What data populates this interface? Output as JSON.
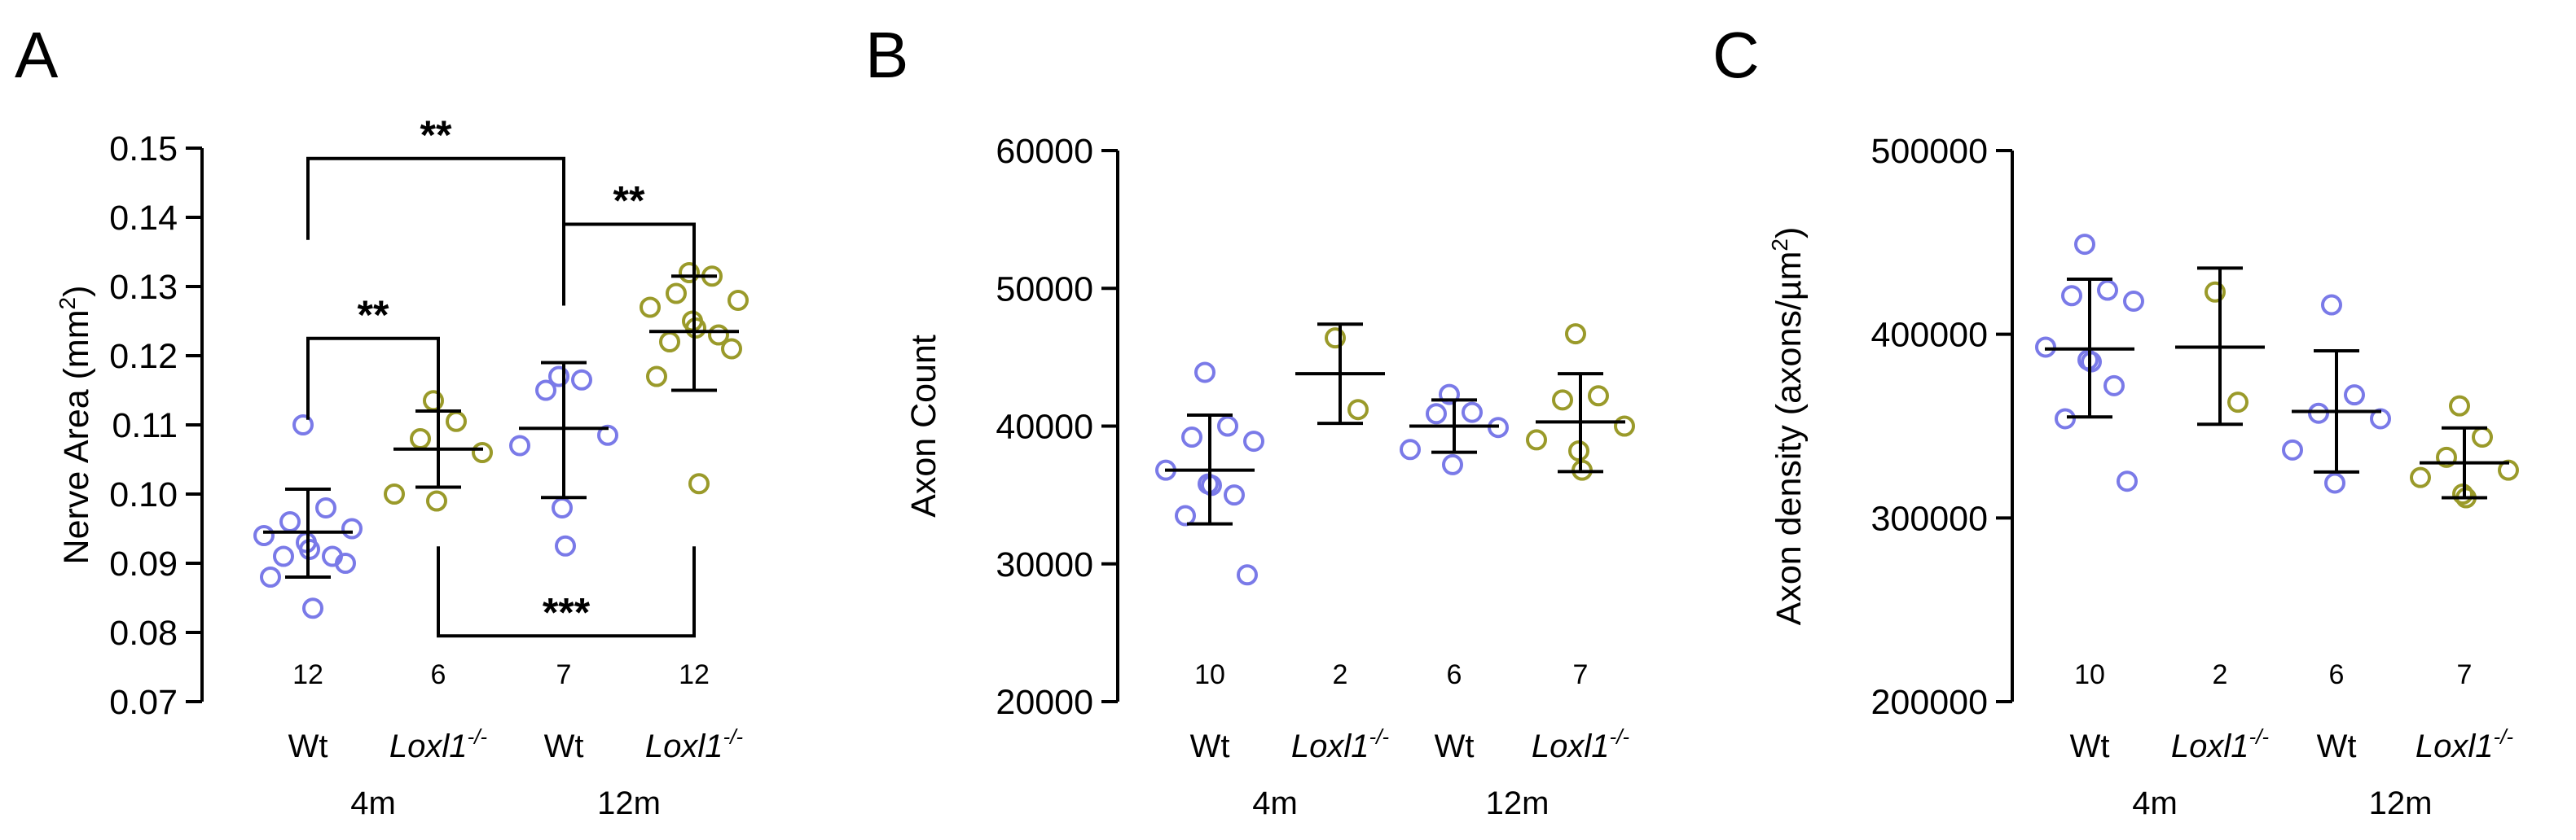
{
  "colors": {
    "wt": "#7a7ae8",
    "ko": "#9a9a2a"
  },
  "chart_data": [
    {
      "panel": "A",
      "type": "scatter",
      "ylabel": "Nerve Area (mm",
      "ylabel_sup": "2",
      "ylabel_end": ")",
      "ylim": [
        0.07,
        0.15
      ],
      "yticks": [
        "0.07",
        "0.08",
        "0.09",
        "0.10",
        "0.11",
        "0.12",
        "0.13",
        "0.14",
        "0.15"
      ],
      "categories": [
        {
          "label": "Wt",
          "sup": "",
          "italic": false,
          "group": "wt",
          "n": "12",
          "mean": 0.0945,
          "sd_low": 0.088,
          "sd_high": 0.1007,
          "points": [
            0.11,
            0.098,
            0.096,
            0.095,
            0.094,
            0.093,
            0.092,
            0.091,
            0.091,
            0.09,
            0.088,
            0.0835
          ]
        },
        {
          "label": "Loxl1",
          "sup": "-/-",
          "italic": true,
          "group": "ko",
          "n": "6",
          "mean": 0.1065,
          "sd_low": 0.101,
          "sd_high": 0.112,
          "points": [
            0.1135,
            0.1105,
            0.108,
            0.106,
            0.1,
            0.099
          ]
        },
        {
          "label": "Wt",
          "sup": "",
          "italic": false,
          "group": "wt",
          "n": "7",
          "mean": 0.1095,
          "sd_low": 0.0995,
          "sd_high": 0.119,
          "points": [
            0.117,
            0.1165,
            0.115,
            0.1085,
            0.107,
            0.098,
            0.0925
          ]
        },
        {
          "label": "Loxl1",
          "sup": "-/-",
          "italic": true,
          "group": "ko",
          "n": "12",
          "mean": 0.1235,
          "sd_low": 0.115,
          "sd_high": 0.1315,
          "points": [
            0.132,
            0.1315,
            0.129,
            0.128,
            0.127,
            0.125,
            0.124,
            0.123,
            0.122,
            0.121,
            0.117,
            0.1015
          ]
        }
      ],
      "groups": [
        "4m",
        "12m"
      ],
      "brackets": [
        {
          "from": 0,
          "to": 2,
          "y": 0.1485,
          "side": "top",
          "label": "**"
        },
        {
          "from": 2,
          "to": 3,
          "y": 0.139,
          "side": "top",
          "label": "**"
        },
        {
          "from": 0,
          "to": 1,
          "y": 0.1225,
          "side": "top",
          "label": "**"
        },
        {
          "from": 1,
          "to": 3,
          "y": 0.0795,
          "side": "bottom",
          "label": "***"
        }
      ]
    },
    {
      "panel": "B",
      "type": "scatter",
      "ylabel": "Axon Count",
      "ylabel_sup": "",
      "ylabel_end": "",
      "ylim": [
        20000,
        60000
      ],
      "yticks": [
        "20000",
        "30000",
        "40000",
        "50000",
        "60000"
      ],
      "categories": [
        {
          "label": "Wt",
          "sup": "",
          "italic": false,
          "group": "wt",
          "n": "10",
          "mean": 36800,
          "sd_low": 32900,
          "sd_high": 40800,
          "points": [
            43900,
            40000,
            39200,
            38900,
            36800,
            35800,
            35700,
            35000,
            33500,
            29200
          ]
        },
        {
          "label": "Loxl1",
          "sup": "-/-",
          "italic": true,
          "group": "ko",
          "n": "2",
          "mean": 43800,
          "sd_low": 40200,
          "sd_high": 47400,
          "points": [
            46400,
            41200
          ]
        },
        {
          "label": "Wt",
          "sup": "",
          "italic": false,
          "group": "wt",
          "n": "6",
          "mean": 40000,
          "sd_low": 38100,
          "sd_high": 41900,
          "points": [
            42300,
            41000,
            40900,
            39900,
            38300,
            37200
          ]
        },
        {
          "label": "Loxl1",
          "sup": "-/-",
          "italic": true,
          "group": "ko",
          "n": "7",
          "mean": 40300,
          "sd_low": 36700,
          "sd_high": 43800,
          "points": [
            46700,
            42200,
            41900,
            40000,
            39000,
            38200,
            36800
          ]
        }
      ],
      "groups": [
        "4m",
        "12m"
      ],
      "brackets": []
    },
    {
      "panel": "C",
      "type": "scatter",
      "ylabel": "Axon density (axons/µm",
      "ylabel_sup": "2",
      "ylabel_end": ")",
      "ylim": [
        200000,
        500000
      ],
      "yticks": [
        "200000",
        "300000",
        "400000",
        "500000"
      ],
      "categories": [
        {
          "label": "Wt",
          "sup": "",
          "italic": false,
          "group": "wt",
          "n": "10",
          "mean": 392000,
          "sd_low": 355000,
          "sd_high": 430000,
          "points": [
            449000,
            424000,
            421000,
            418000,
            393000,
            386000,
            385000,
            372000,
            354000,
            320000
          ]
        },
        {
          "label": "Loxl1",
          "sup": "-/-",
          "italic": true,
          "group": "ko",
          "n": "2",
          "mean": 393000,
          "sd_low": 351000,
          "sd_high": 436000,
          "points": [
            423000,
            363000
          ]
        },
        {
          "label": "Wt",
          "sup": "",
          "italic": false,
          "group": "wt",
          "n": "6",
          "mean": 358000,
          "sd_low": 325000,
          "sd_high": 391000,
          "points": [
            416000,
            367000,
            357000,
            354000,
            337000,
            319000
          ]
        },
        {
          "label": "Loxl1",
          "sup": "-/-",
          "italic": true,
          "group": "ko",
          "n": "7",
          "mean": 330000,
          "sd_low": 311000,
          "sd_high": 349000,
          "points": [
            361000,
            344000,
            333000,
            326000,
            322000,
            313000,
            311000
          ]
        }
      ],
      "groups": [
        "4m",
        "12m"
      ],
      "brackets": []
    }
  ]
}
